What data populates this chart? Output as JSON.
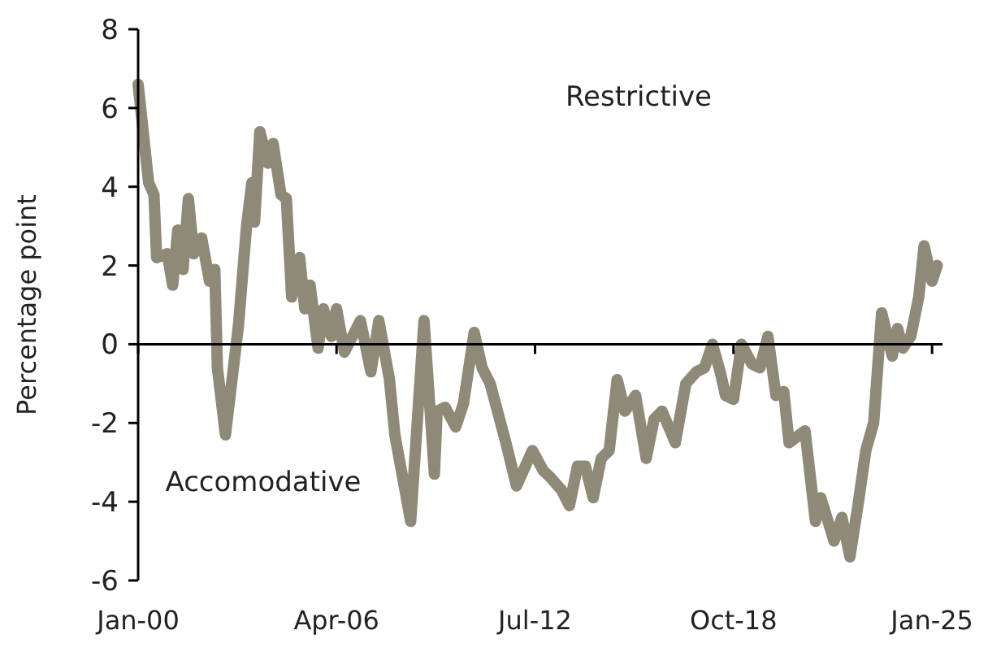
{
  "chart_data": {
    "type": "line",
    "ylabel": "Percentage point",
    "annotations": [
      "Restrictive",
      "Accomodative"
    ],
    "xlim": [
      "2000-01",
      "2025-05"
    ],
    "xticks": [
      {
        "value": "2000-01",
        "label": "Jan-00"
      },
      {
        "value": "2006-04",
        "label": "Apr-06"
      },
      {
        "value": "2012-07",
        "label": "Jul-12"
      },
      {
        "value": "2018-10",
        "label": "Oct-18"
      },
      {
        "value": "2025-01",
        "label": "Jan-25"
      }
    ],
    "ylim": [
      -6,
      8
    ],
    "yticks": [
      -6,
      -4,
      -2,
      0,
      2,
      4,
      6,
      8
    ],
    "marker": "none",
    "line_style": "solid",
    "x": [
      "2000-01",
      "2000-05",
      "2000-07",
      "2000-08",
      "2000-12",
      "2001-02",
      "2001-04",
      "2001-06",
      "2001-08",
      "2001-10",
      "2002-01",
      "2002-04",
      "2002-06",
      "2002-07",
      "2002-10",
      "2003-01",
      "2003-03",
      "2003-06",
      "2003-08",
      "2003-09",
      "2003-11",
      "2004-02",
      "2004-04",
      "2004-07",
      "2004-09",
      "2004-11",
      "2005-02",
      "2005-04",
      "2005-06",
      "2005-09",
      "2005-11",
      "2006-02",
      "2006-04",
      "2006-07",
      "2007-01",
      "2007-05",
      "2007-08",
      "2007-12",
      "2008-02",
      "2008-08",
      "2009-01",
      "2009-05",
      "2009-06",
      "2009-09",
      "2010-01",
      "2010-04",
      "2010-08",
      "2010-11",
      "2011-02",
      "2011-08",
      "2011-12",
      "2012-06",
      "2012-10",
      "2013-01",
      "2013-05",
      "2013-08",
      "2013-11",
      "2014-02",
      "2014-05",
      "2014-08",
      "2014-11",
      "2015-02",
      "2015-05",
      "2015-09",
      "2016-01",
      "2016-04",
      "2016-07",
      "2016-12",
      "2017-04",
      "2017-08",
      "2017-11",
      "2018-02",
      "2018-05",
      "2018-07",
      "2018-10",
      "2019-01",
      "2019-05",
      "2019-08",
      "2019-11",
      "2020-02",
      "2020-05",
      "2020-07",
      "2021-01",
      "2021-05",
      "2021-07",
      "2021-12",
      "2022-03",
      "2022-06",
      "2022-09",
      "2022-12",
      "2023-03",
      "2023-06",
      "2023-10",
      "2023-12",
      "2024-02",
      "2024-05",
      "2024-08",
      "2024-10",
      "2025-01",
      "2025-03"
    ],
    "series": [
      {
        "color": "#8f8a77",
        "values": [
          6.6,
          4.1,
          3.8,
          2.2,
          2.3,
          1.5,
          2.9,
          1.9,
          3.7,
          2.3,
          2.7,
          1.6,
          1.9,
          -0.6,
          -2.3,
          -0.6,
          0.5,
          3.0,
          4.1,
          3.1,
          5.4,
          4.6,
          5.1,
          3.8,
          3.7,
          1.2,
          2.2,
          0.9,
          1.5,
          -0.1,
          0.9,
          0.2,
          0.9,
          -0.2,
          0.6,
          -0.7,
          0.6,
          -0.9,
          -2.3,
          -4.5,
          0.6,
          -3.3,
          -1.7,
          -1.6,
          -2.1,
          -1.5,
          0.3,
          -0.6,
          -1.0,
          -2.5,
          -3.6,
          -2.7,
          -3.2,
          -3.4,
          -3.7,
          -4.1,
          -3.1,
          -3.1,
          -3.9,
          -2.9,
          -2.7,
          -0.9,
          -1.7,
          -1.3,
          -2.9,
          -1.9,
          -1.7,
          -2.5,
          -1.0,
          -0.7,
          -0.6,
          0.0,
          -0.7,
          -1.3,
          -1.4,
          0.0,
          -0.5,
          -0.6,
          0.2,
          -1.3,
          -1.2,
          -2.5,
          -2.2,
          -4.5,
          -3.9,
          -5.0,
          -4.4,
          -5.4,
          -4.1,
          -2.7,
          -2.0,
          0.8,
          -0.3,
          0.4,
          -0.1,
          0.2,
          1.2,
          2.5,
          1.6,
          2.0
        ]
      }
    ]
  }
}
